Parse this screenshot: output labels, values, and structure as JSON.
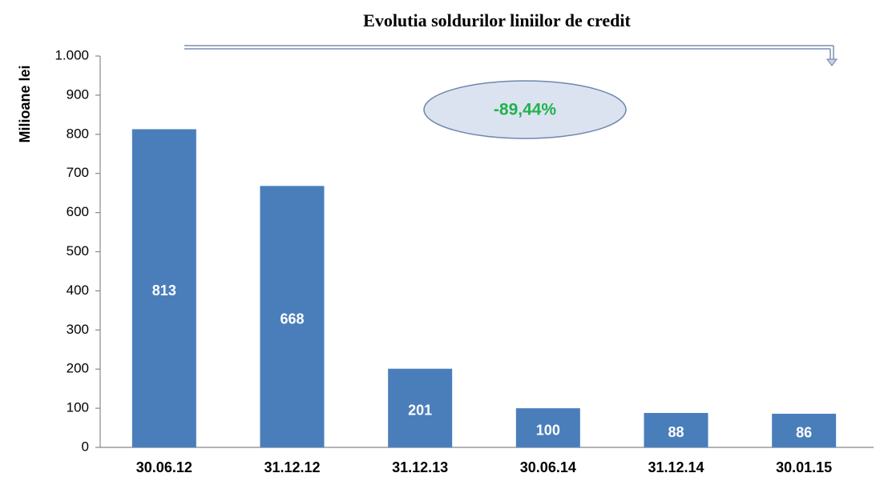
{
  "chart_data": {
    "type": "bar",
    "title": "Evolutia soldurilor liniilor de credit",
    "y_label": "Milioane lei",
    "annotation": "-89,44%",
    "categories": [
      "30.06.12",
      "31.12.12",
      "31.12.13",
      "30.06.14",
      "31.12.14",
      "30.01.15"
    ],
    "values": [
      813,
      668,
      201,
      100,
      88,
      86
    ],
    "color": "#4a7ebb",
    "ylim": [
      0,
      1000
    ],
    "yticks": [
      0,
      100,
      200,
      300,
      400,
      500,
      600,
      700,
      800,
      900,
      {
        "value": 1000,
        "label": "1.000"
      }
    ],
    "grid": false
  }
}
